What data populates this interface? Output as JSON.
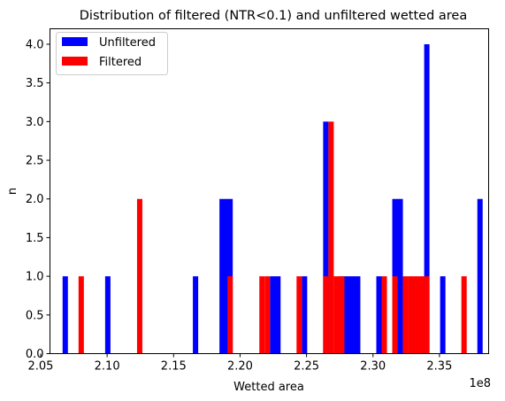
{
  "chart_data": {
    "type": "bar",
    "title": "Distribution of filtered (NTR<0.1) and unfiltered wetted area",
    "xlabel": "Wetted area",
    "ylabel": "n",
    "x_offset_label": "1e8",
    "xlim": [
      2.057,
      2.387
    ],
    "ylim": [
      0,
      4.2
    ],
    "x_unit_scale": 100000000,
    "xticks": [
      2.05,
      2.1,
      2.15,
      2.2,
      2.25,
      2.3,
      2.35
    ],
    "xtick_labels": [
      "2.05",
      "2.10",
      "2.15",
      "2.20",
      "2.25",
      "2.30",
      "2.35"
    ],
    "yticks": [
      0.0,
      0.5,
      1.0,
      1.5,
      2.0,
      2.5,
      3.0,
      3.5,
      4.0
    ],
    "ytick_labels": [
      "0.0",
      "0.5",
      "1.0",
      "1.5",
      "2.0",
      "2.5",
      "3.0",
      "3.5",
      "4.0"
    ],
    "legend_position": "top-left",
    "series": [
      {
        "name": "Unfiltered",
        "color": "#0000ff",
        "bars": [
          {
            "x0": 2.0665,
            "x1": 2.0705,
            "y": 1
          },
          {
            "x0": 2.0985,
            "x1": 2.1025,
            "y": 1
          },
          {
            "x0": 2.1645,
            "x1": 2.1685,
            "y": 1
          },
          {
            "x0": 2.1845,
            "x1": 2.1945,
            "y": 2
          },
          {
            "x0": 2.2225,
            "x1": 2.2305,
            "y": 1
          },
          {
            "x0": 2.2465,
            "x1": 2.2505,
            "y": 1
          },
          {
            "x0": 2.2625,
            "x1": 2.2665,
            "y": 3
          },
          {
            "x0": 2.2745,
            "x1": 2.2905,
            "y": 1
          },
          {
            "x0": 2.3025,
            "x1": 2.3065,
            "y": 1
          },
          {
            "x0": 2.3145,
            "x1": 2.3225,
            "y": 2
          },
          {
            "x0": 2.3385,
            "x1": 2.3425,
            "y": 4
          },
          {
            "x0": 2.3505,
            "x1": 2.3545,
            "y": 1
          },
          {
            "x0": 2.3785,
            "x1": 2.3825,
            "y": 2
          }
        ]
      },
      {
        "name": "Filtered",
        "color": "#ff0000",
        "bars": [
          {
            "x0": 2.0785,
            "x1": 2.0825,
            "y": 1
          },
          {
            "x0": 2.1225,
            "x1": 2.1265,
            "y": 2
          },
          {
            "x0": 2.1905,
            "x1": 2.1945,
            "y": 1
          },
          {
            "x0": 2.2145,
            "x1": 2.2185,
            "y": 1
          },
          {
            "x0": 2.2185,
            "x1": 2.2225,
            "y": 1
          },
          {
            "x0": 2.2425,
            "x1": 2.2465,
            "y": 1
          },
          {
            "x0": 2.2625,
            "x1": 2.2665,
            "y": 1
          },
          {
            "x0": 2.2665,
            "x1": 2.2705,
            "y": 3
          },
          {
            "x0": 2.2705,
            "x1": 2.2785,
            "y": 1
          },
          {
            "x0": 2.3065,
            "x1": 2.3105,
            "y": 1
          },
          {
            "x0": 2.3145,
            "x1": 2.3185,
            "y": 1
          },
          {
            "x0": 2.3225,
            "x1": 2.3265,
            "y": 1
          },
          {
            "x0": 2.3265,
            "x1": 2.3385,
            "y": 1
          },
          {
            "x0": 2.3385,
            "x1": 2.3425,
            "y": 1
          },
          {
            "x0": 2.3665,
            "x1": 2.3705,
            "y": 1
          }
        ]
      }
    ]
  }
}
